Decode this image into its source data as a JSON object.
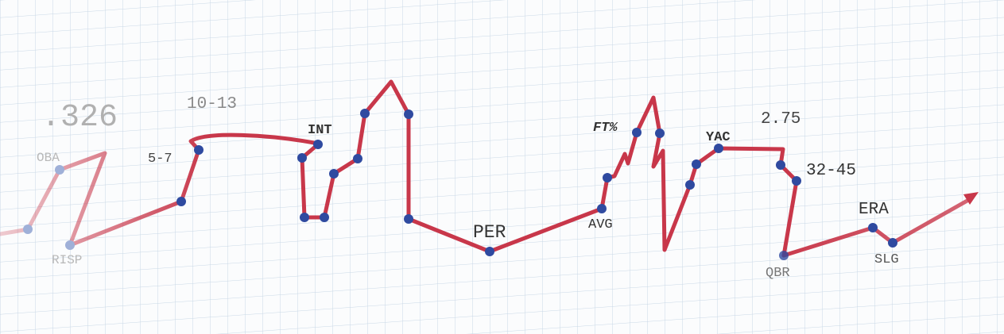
{
  "labels": [
    ".326",
    "10-13",
    "OBA",
    "5-7",
    "INT",
    "RISP",
    "PER",
    "AVG",
    "FT%",
    "YAC",
    "2.75",
    "32-45",
    "ERA",
    "QBR",
    "SLG"
  ]
}
